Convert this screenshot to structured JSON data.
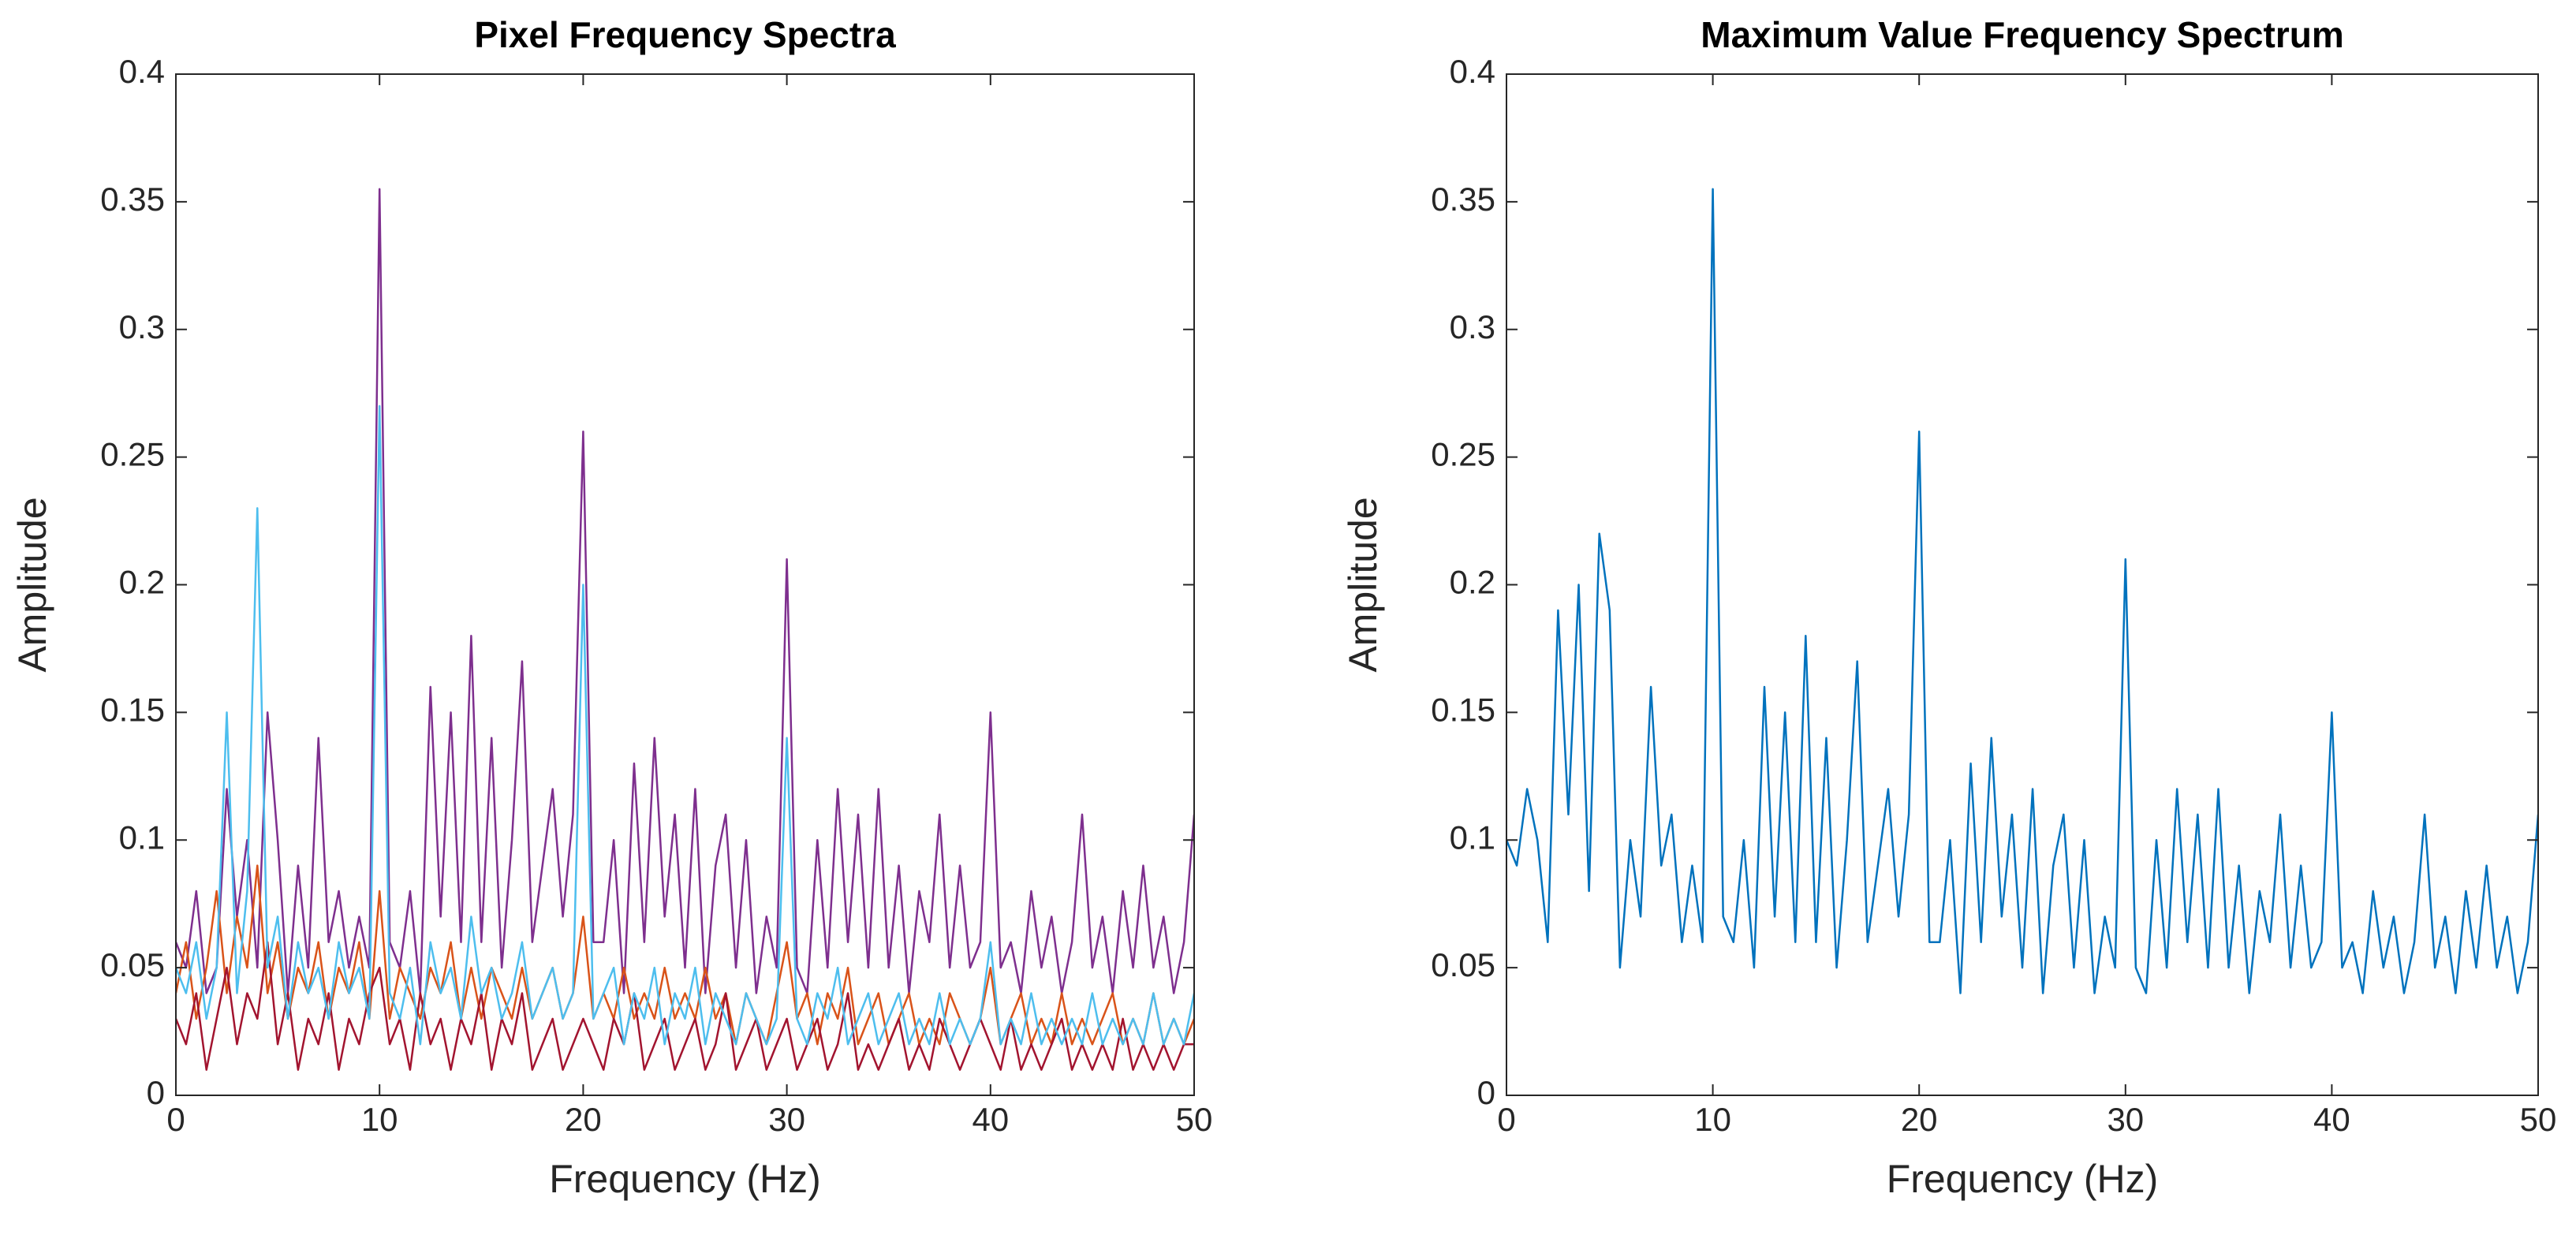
{
  "chart_data": [
    {
      "type": "line",
      "title": "Pixel Frequency Spectra",
      "x_label": "Frequency (Hz)",
      "y_label": "Amplitude",
      "xlim": [
        0,
        50
      ],
      "ylim": [
        0,
        0.4
      ],
      "xticks": [
        0,
        10,
        20,
        30,
        40,
        50
      ],
      "yticks": [
        0,
        0.05,
        0.1,
        0.15,
        0.2,
        0.25,
        0.3,
        0.35,
        0.4
      ],
      "x": [
        0,
        0.5,
        1,
        1.5,
        2,
        2.5,
        3,
        3.5,
        4,
        4.5,
        5,
        5.5,
        6,
        6.5,
        7,
        7.5,
        8,
        8.5,
        9,
        9.5,
        10,
        10.5,
        11,
        11.5,
        12,
        12.5,
        13,
        13.5,
        14,
        14.5,
        15,
        15.5,
        16,
        16.5,
        17,
        17.5,
        18,
        18.5,
        19,
        19.5,
        20,
        20.5,
        21,
        21.5,
        22,
        22.5,
        23,
        23.5,
        24,
        24.5,
        25,
        25.5,
        26,
        26.5,
        27,
        27.5,
        28,
        28.5,
        29,
        29.5,
        30,
        30.5,
        31,
        31.5,
        32,
        32.5,
        33,
        33.5,
        34,
        34.5,
        35,
        35.5,
        36,
        36.5,
        37,
        37.5,
        38,
        38.5,
        39,
        39.5,
        40,
        40.5,
        41,
        41.5,
        42,
        42.5,
        43,
        43.5,
        44,
        44.5,
        45,
        45.5,
        46,
        46.5,
        47,
        47.5,
        48,
        48.5,
        49,
        49.5,
        50
      ],
      "series": [
        {
          "color": "#7E2F8E",
          "values": [
            0.06,
            0.05,
            0.08,
            0.04,
            0.05,
            0.12,
            0.07,
            0.1,
            0.05,
            0.15,
            0.1,
            0.04,
            0.09,
            0.05,
            0.14,
            0.06,
            0.08,
            0.05,
            0.07,
            0.05,
            0.355,
            0.06,
            0.05,
            0.08,
            0.04,
            0.16,
            0.07,
            0.15,
            0.06,
            0.18,
            0.06,
            0.14,
            0.05,
            0.1,
            0.17,
            0.06,
            0.09,
            0.12,
            0.07,
            0.11,
            0.26,
            0.06,
            0.06,
            0.1,
            0.04,
            0.13,
            0.06,
            0.14,
            0.07,
            0.11,
            0.05,
            0.12,
            0.04,
            0.09,
            0.11,
            0.05,
            0.1,
            0.04,
            0.07,
            0.05,
            0.21,
            0.05,
            0.04,
            0.1,
            0.05,
            0.12,
            0.06,
            0.11,
            0.05,
            0.12,
            0.05,
            0.09,
            0.04,
            0.08,
            0.06,
            0.11,
            0.05,
            0.09,
            0.05,
            0.06,
            0.15,
            0.05,
            0.06,
            0.04,
            0.08,
            0.05,
            0.07,
            0.04,
            0.06,
            0.11,
            0.05,
            0.07,
            0.04,
            0.08,
            0.05,
            0.09,
            0.05,
            0.07,
            0.04,
            0.06,
            0.11
          ]
        },
        {
          "color": "#D95319",
          "values": [
            0.04,
            0.06,
            0.03,
            0.05,
            0.08,
            0.04,
            0.07,
            0.05,
            0.09,
            0.04,
            0.06,
            0.03,
            0.05,
            0.04,
            0.06,
            0.03,
            0.05,
            0.04,
            0.06,
            0.03,
            0.08,
            0.03,
            0.05,
            0.04,
            0.03,
            0.05,
            0.04,
            0.06,
            0.03,
            0.05,
            0.03,
            0.05,
            0.04,
            0.03,
            0.05,
            0.03,
            0.04,
            0.05,
            0.03,
            0.04,
            0.07,
            0.03,
            0.04,
            0.03,
            0.05,
            0.03,
            0.04,
            0.03,
            0.05,
            0.03,
            0.04,
            0.03,
            0.05,
            0.03,
            0.04,
            0.02,
            0.04,
            0.03,
            0.02,
            0.04,
            0.06,
            0.03,
            0.04,
            0.02,
            0.04,
            0.03,
            0.05,
            0.02,
            0.03,
            0.04,
            0.02,
            0.03,
            0.04,
            0.02,
            0.03,
            0.02,
            0.04,
            0.03,
            0.02,
            0.03,
            0.05,
            0.02,
            0.03,
            0.04,
            0.02,
            0.03,
            0.02,
            0.04,
            0.02,
            0.03,
            0.02,
            0.03,
            0.04,
            0.02,
            0.03,
            0.02,
            0.04,
            0.02,
            0.03,
            0.02,
            0.03
          ]
        },
        {
          "color": "#A2142F",
          "values": [
            0.03,
            0.02,
            0.04,
            0.01,
            0.03,
            0.05,
            0.02,
            0.04,
            0.03,
            0.06,
            0.02,
            0.04,
            0.01,
            0.03,
            0.02,
            0.04,
            0.01,
            0.03,
            0.02,
            0.04,
            0.05,
            0.02,
            0.03,
            0.01,
            0.04,
            0.02,
            0.03,
            0.01,
            0.03,
            0.02,
            0.04,
            0.01,
            0.03,
            0.02,
            0.04,
            0.01,
            0.02,
            0.03,
            0.01,
            0.02,
            0.03,
            0.02,
            0.01,
            0.03,
            0.02,
            0.04,
            0.01,
            0.02,
            0.03,
            0.01,
            0.02,
            0.03,
            0.01,
            0.02,
            0.04,
            0.01,
            0.02,
            0.03,
            0.01,
            0.02,
            0.03,
            0.01,
            0.02,
            0.03,
            0.01,
            0.02,
            0.04,
            0.01,
            0.02,
            0.01,
            0.02,
            0.03,
            0.01,
            0.02,
            0.01,
            0.03,
            0.02,
            0.01,
            0.02,
            0.03,
            0.02,
            0.01,
            0.03,
            0.01,
            0.02,
            0.01,
            0.02,
            0.03,
            0.01,
            0.02,
            0.01,
            0.02,
            0.01,
            0.03,
            0.01,
            0.02,
            0.01,
            0.02,
            0.01,
            0.02,
            0.02
          ]
        },
        {
          "color": "#4DBEEE",
          "values": [
            0.05,
            0.04,
            0.06,
            0.03,
            0.05,
            0.15,
            0.04,
            0.08,
            0.23,
            0.05,
            0.07,
            0.03,
            0.06,
            0.04,
            0.05,
            0.03,
            0.06,
            0.04,
            0.05,
            0.03,
            0.27,
            0.04,
            0.03,
            0.05,
            0.02,
            0.06,
            0.04,
            0.05,
            0.03,
            0.07,
            0.04,
            0.05,
            0.03,
            0.04,
            0.06,
            0.03,
            0.04,
            0.05,
            0.03,
            0.04,
            0.2,
            0.03,
            0.04,
            0.05,
            0.02,
            0.04,
            0.03,
            0.05,
            0.02,
            0.04,
            0.03,
            0.05,
            0.02,
            0.04,
            0.03,
            0.02,
            0.04,
            0.03,
            0.02,
            0.03,
            0.14,
            0.03,
            0.02,
            0.04,
            0.03,
            0.05,
            0.02,
            0.03,
            0.04,
            0.02,
            0.03,
            0.04,
            0.02,
            0.03,
            0.02,
            0.04,
            0.02,
            0.03,
            0.02,
            0.03,
            0.06,
            0.02,
            0.03,
            0.02,
            0.04,
            0.02,
            0.03,
            0.02,
            0.03,
            0.02,
            0.04,
            0.02,
            0.03,
            0.02,
            0.03,
            0.02,
            0.04,
            0.02,
            0.03,
            0.02,
            0.04
          ]
        }
      ]
    },
    {
      "type": "line",
      "title": "Maximum Value Frequency Spectrum",
      "x_label": "Frequency (Hz)",
      "y_label": "Amplitude",
      "xlim": [
        0,
        50
      ],
      "ylim": [
        0,
        0.4
      ],
      "xticks": [
        0,
        10,
        20,
        30,
        40,
        50
      ],
      "yticks": [
        0,
        0.05,
        0.1,
        0.15,
        0.2,
        0.25,
        0.3,
        0.35,
        0.4
      ],
      "x": [
        0,
        0.5,
        1,
        1.5,
        2,
        2.5,
        3,
        3.5,
        4,
        4.5,
        5,
        5.5,
        6,
        6.5,
        7,
        7.5,
        8,
        8.5,
        9,
        9.5,
        10,
        10.5,
        11,
        11.5,
        12,
        12.5,
        13,
        13.5,
        14,
        14.5,
        15,
        15.5,
        16,
        16.5,
        17,
        17.5,
        18,
        18.5,
        19,
        19.5,
        20,
        20.5,
        21,
        21.5,
        22,
        22.5,
        23,
        23.5,
        24,
        24.5,
        25,
        25.5,
        26,
        26.5,
        27,
        27.5,
        28,
        28.5,
        29,
        29.5,
        30,
        30.5,
        31,
        31.5,
        32,
        32.5,
        33,
        33.5,
        34,
        34.5,
        35,
        35.5,
        36,
        36.5,
        37,
        37.5,
        38,
        38.5,
        39,
        39.5,
        40,
        40.5,
        41,
        41.5,
        42,
        42.5,
        43,
        43.5,
        44,
        44.5,
        45,
        45.5,
        46,
        46.5,
        47,
        47.5,
        48,
        48.5,
        49,
        49.5,
        50
      ],
      "series": [
        {
          "color": "#0072BD",
          "values": [
            0.1,
            0.09,
            0.12,
            0.1,
            0.06,
            0.19,
            0.11,
            0.2,
            0.08,
            0.22,
            0.19,
            0.05,
            0.1,
            0.07,
            0.16,
            0.09,
            0.11,
            0.06,
            0.09,
            0.06,
            0.355,
            0.07,
            0.06,
            0.1,
            0.05,
            0.16,
            0.07,
            0.15,
            0.06,
            0.18,
            0.06,
            0.14,
            0.05,
            0.1,
            0.17,
            0.06,
            0.09,
            0.12,
            0.07,
            0.11,
            0.26,
            0.06,
            0.06,
            0.1,
            0.04,
            0.13,
            0.06,
            0.14,
            0.07,
            0.11,
            0.05,
            0.12,
            0.04,
            0.09,
            0.11,
            0.05,
            0.1,
            0.04,
            0.07,
            0.05,
            0.21,
            0.05,
            0.04,
            0.1,
            0.05,
            0.12,
            0.06,
            0.11,
            0.05,
            0.12,
            0.05,
            0.09,
            0.04,
            0.08,
            0.06,
            0.11,
            0.05,
            0.09,
            0.05,
            0.06,
            0.15,
            0.05,
            0.06,
            0.04,
            0.08,
            0.05,
            0.07,
            0.04,
            0.06,
            0.11,
            0.05,
            0.07,
            0.04,
            0.08,
            0.05,
            0.09,
            0.05,
            0.07,
            0.04,
            0.06,
            0.11
          ]
        }
      ]
    }
  ]
}
